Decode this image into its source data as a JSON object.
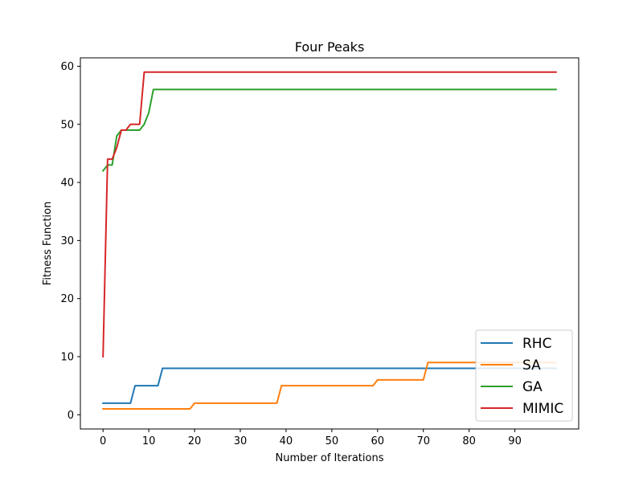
{
  "chart_data": {
    "type": "line",
    "title": "Four Peaks",
    "xlabel": "Number of Iterations",
    "ylabel": "Fitness Function",
    "xlim": [
      -4.95,
      103.95
    ],
    "ylim": [
      -2.45,
      61.45
    ],
    "xticks": [
      0,
      10,
      20,
      30,
      40,
      50,
      60,
      70,
      80,
      90
    ],
    "yticks": [
      0,
      10,
      20,
      30,
      40,
      50,
      60
    ],
    "grid": false,
    "legend_position": "lower-right",
    "series": [
      {
        "name": "RHC",
        "color": "#1f77b4",
        "points": [
          [
            0,
            2
          ],
          [
            6,
            2
          ],
          [
            7,
            5
          ],
          [
            12,
            5
          ],
          [
            13,
            8
          ],
          [
            99,
            8
          ]
        ]
      },
      {
        "name": "SA",
        "color": "#ff7f0e",
        "points": [
          [
            0,
            1
          ],
          [
            19,
            1
          ],
          [
            20,
            2
          ],
          [
            38,
            2
          ],
          [
            39,
            5
          ],
          [
            59,
            5
          ],
          [
            60,
            6
          ],
          [
            70,
            6
          ],
          [
            71,
            9
          ],
          [
            99,
            9
          ]
        ]
      },
      {
        "name": "GA",
        "color": "#2ca02c",
        "points": [
          [
            0,
            42
          ],
          [
            1,
            43
          ],
          [
            2,
            43
          ],
          [
            3,
            48
          ],
          [
            4,
            49
          ],
          [
            8,
            49
          ],
          [
            9,
            50
          ],
          [
            10,
            52
          ],
          [
            11,
            56
          ],
          [
            99,
            56
          ]
        ]
      },
      {
        "name": "MIMIC",
        "color": "#d62728",
        "points": [
          [
            0,
            10
          ],
          [
            1,
            44
          ],
          [
            2,
            44
          ],
          [
            3,
            46
          ],
          [
            4,
            49
          ],
          [
            5,
            49
          ],
          [
            6,
            50
          ],
          [
            8,
            50
          ],
          [
            9,
            59
          ],
          [
            99,
            59
          ]
        ]
      }
    ]
  }
}
